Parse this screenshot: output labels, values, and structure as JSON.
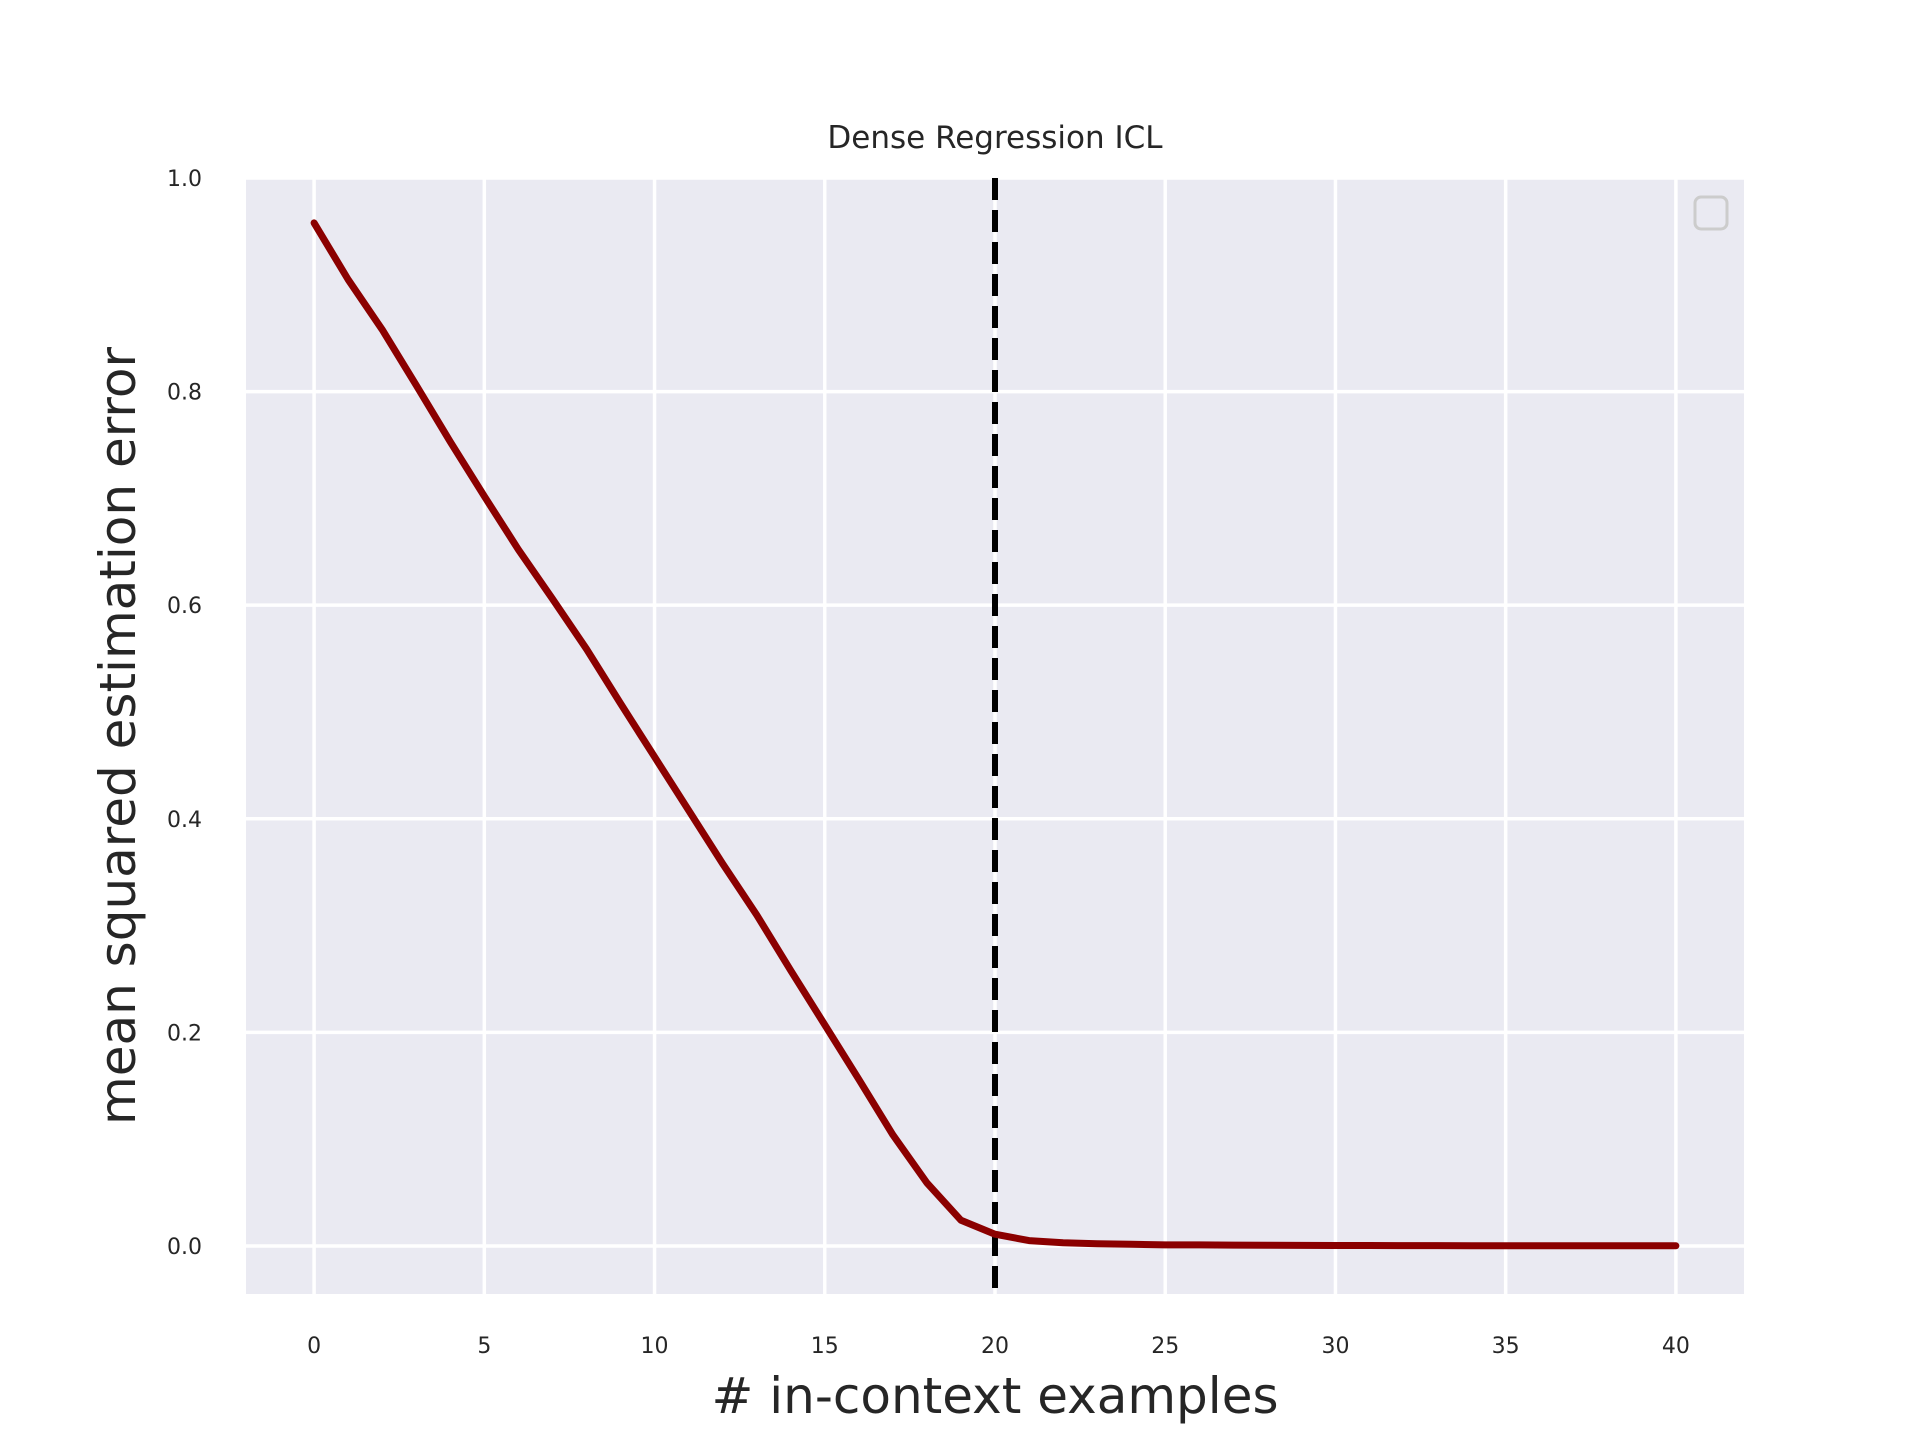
{
  "chart_data": {
    "type": "line",
    "title": "Dense Regression ICL",
    "xlabel": "# in-context examples",
    "ylabel": "mean squared estimation error",
    "xlim": [
      -2,
      42
    ],
    "ylim": [
      -0.045,
      1.0
    ],
    "x_ticks": [
      0,
      5,
      10,
      15,
      20,
      25,
      30,
      35,
      40
    ],
    "x_tick_labels": [
      "0",
      "5",
      "10",
      "15",
      "20",
      "25",
      "30",
      "35",
      "40"
    ],
    "y_ticks": [
      0.0,
      0.2,
      0.4,
      0.6,
      0.8,
      1.0
    ],
    "y_tick_labels": [
      "0.0",
      "0.2",
      "0.4",
      "0.6",
      "0.8",
      "1.0"
    ],
    "grid": true,
    "legend": "top-right (empty)",
    "colors": {
      "series": "#8b0000",
      "reference_line": "#000000",
      "plot_background": "#eaeaf2",
      "grid": "#ffffff"
    },
    "reference_line": {
      "x": 20,
      "style": "dashed"
    },
    "series": [
      {
        "x": [
          0,
          1,
          2,
          3,
          4,
          5,
          6,
          7,
          8,
          9,
          10,
          11,
          12,
          13,
          14,
          15,
          16,
          17,
          18,
          19,
          20,
          21,
          22,
          23,
          24,
          25,
          26,
          27,
          28,
          29,
          30,
          31,
          32,
          33,
          34,
          35,
          36,
          37,
          38,
          39,
          40
        ],
        "values": [
          0.958,
          0.905,
          0.858,
          0.806,
          0.753,
          0.702,
          0.652,
          0.606,
          0.559,
          0.508,
          0.458,
          0.408,
          0.358,
          0.31,
          0.258,
          0.207,
          0.156,
          0.104,
          0.059,
          0.024,
          0.011,
          0.005,
          0.003,
          0.002,
          0.0015,
          0.001,
          0.001,
          0.0008,
          0.0006,
          0.0005,
          0.0004,
          0.0004,
          0.0003,
          0.0003,
          0.0002,
          0.0002,
          0.0002,
          0.0002,
          0.0001,
          0.0001,
          0.0001
        ]
      }
    ]
  }
}
